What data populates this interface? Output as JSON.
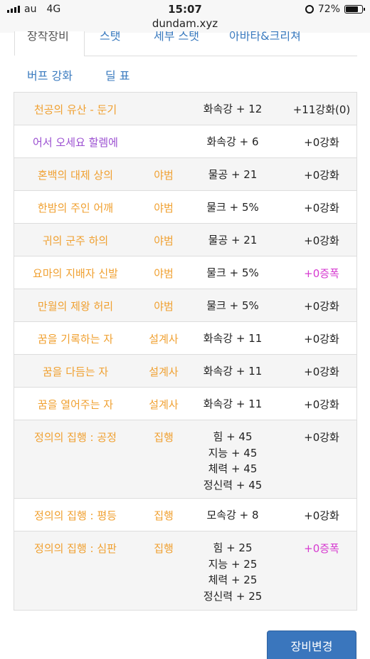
{
  "status": {
    "carrier": "au",
    "network": "4G",
    "time": "15:07",
    "battery": "72%"
  },
  "url": "dundam.xyz",
  "tabs_row1": [
    "장착장비",
    "스탯",
    "세부 스탯",
    "아바타&크리쳐"
  ],
  "tabs_row2": [
    "버프 강화",
    "딜 표"
  ],
  "equipment": [
    {
      "name": "천공의 유산 - 둔기",
      "set": "",
      "stats": [
        "화속강 + 12"
      ],
      "enhance": "+11강화(0)",
      "name_color": "orange",
      "enhance_color": "black"
    },
    {
      "name": "어서 오세요 할렘에",
      "set": "",
      "stats": [
        "화속강 + 6"
      ],
      "enhance": "+0강화",
      "name_color": "purple",
      "enhance_color": "black"
    },
    {
      "name": "혼백의 대제 상의",
      "set": "야범",
      "stats": [
        "물공 + 21"
      ],
      "enhance": "+0강화",
      "name_color": "orange",
      "enhance_color": "black"
    },
    {
      "name": "한밤의 주인 어깨",
      "set": "야범",
      "stats": [
        "물크 + 5%"
      ],
      "enhance": "+0강화",
      "name_color": "orange",
      "enhance_color": "black"
    },
    {
      "name": "귀의 군주 하의",
      "set": "야범",
      "stats": [
        "물공 + 21"
      ],
      "enhance": "+0강화",
      "name_color": "orange",
      "enhance_color": "black"
    },
    {
      "name": "요마의 지배자 신발",
      "set": "야범",
      "stats": [
        "물크 + 5%"
      ],
      "enhance": "+0증폭",
      "name_color": "orange",
      "enhance_color": "magenta"
    },
    {
      "name": "만월의 제왕 허리",
      "set": "야범",
      "stats": [
        "물크 + 5%"
      ],
      "enhance": "+0강화",
      "name_color": "orange",
      "enhance_color": "black"
    },
    {
      "name": "꿈을 기록하는 자",
      "set": "설계사",
      "stats": [
        "화속강 + 11"
      ],
      "enhance": "+0강화",
      "name_color": "orange",
      "enhance_color": "black"
    },
    {
      "name": "꿈을 다듬는 자",
      "set": "설계사",
      "stats": [
        "화속강 + 11"
      ],
      "enhance": "+0강화",
      "name_color": "orange",
      "enhance_color": "black"
    },
    {
      "name": "꿈을 열어주는 자",
      "set": "설계사",
      "stats": [
        "화속강 + 11"
      ],
      "enhance": "+0강화",
      "name_color": "orange",
      "enhance_color": "black"
    },
    {
      "name": "정의의 집행 : 공정",
      "set": "집행",
      "stats": [
        "힘 + 45",
        "지능 + 45",
        "체력 + 45",
        "정신력 + 45"
      ],
      "enhance": "+0강화",
      "name_color": "orange",
      "enhance_color": "black"
    },
    {
      "name": "정의의 집행 : 평등",
      "set": "집행",
      "stats": [
        "모속강 + 8"
      ],
      "enhance": "+0강화",
      "name_color": "orange",
      "enhance_color": "black"
    },
    {
      "name": "정의의 집행 : 심판",
      "set": "집행",
      "stats": [
        "힘 + 25",
        "지능 + 25",
        "체력 + 25",
        "정신력 + 25"
      ],
      "enhance": "+0증폭",
      "name_color": "orange",
      "enhance_color": "magenta"
    }
  ],
  "change_button": "장비변경"
}
